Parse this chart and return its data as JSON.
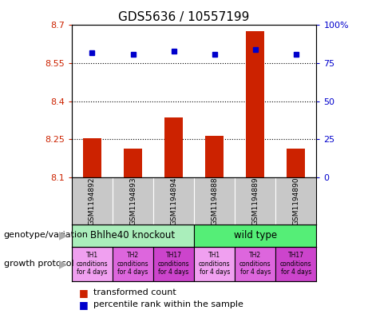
{
  "title": "GDS5636 / 10557199",
  "categories": [
    "GSM1194892",
    "GSM1194893",
    "GSM1194894",
    "GSM1194888",
    "GSM1194889",
    "GSM1194890"
  ],
  "bar_values": [
    8.253,
    8.215,
    8.335,
    8.265,
    8.675,
    8.215
  ],
  "bar_bottom": 8.1,
  "percentile_values": [
    82,
    81,
    83,
    81,
    84,
    81
  ],
  "ylim_left": [
    8.1,
    8.7
  ],
  "ylim_right": [
    0,
    100
  ],
  "yticks_left": [
    8.1,
    8.25,
    8.4,
    8.55,
    8.7
  ],
  "yticks_right": [
    0,
    25,
    50,
    75,
    100
  ],
  "ytick_labels_left": [
    "8.1",
    "8.25",
    "8.4",
    "8.55",
    "8.7"
  ],
  "ytick_labels_right": [
    "0",
    "25",
    "50",
    "75",
    "100%"
  ],
  "hgrid_lines": [
    8.25,
    8.4,
    8.55
  ],
  "bar_color": "#cc2200",
  "dot_color": "#0000cc",
  "genotype_groups": [
    {
      "label": "Bhlhe40 knockout",
      "start": 0,
      "end": 3,
      "color": "#aaeebb"
    },
    {
      "label": "wild type",
      "start": 3,
      "end": 6,
      "color": "#55ee77"
    }
  ],
  "growth_protocols": [
    {
      "label": "TH1\nconditions\nfor 4 days",
      "col": 0,
      "color": "#f0a0f0"
    },
    {
      "label": "TH2\nconditions\nfor 4 days",
      "col": 1,
      "color": "#dd66dd"
    },
    {
      "label": "TH17\nconditions\nfor 4 days",
      "col": 2,
      "color": "#cc44cc"
    },
    {
      "label": "TH1\nconditions\nfor 4 days",
      "col": 3,
      "color": "#f0a0f0"
    },
    {
      "label": "TH2\nconditions\nfor 4 days",
      "col": 4,
      "color": "#dd66dd"
    },
    {
      "label": "TH17\nconditions\nfor 4 days",
      "col": 5,
      "color": "#cc44cc"
    }
  ],
  "legend_red_label": "transformed count",
  "legend_blue_label": "percentile rank within the sample",
  "bg_color": "#c8c8c8",
  "plot_bg": "#ffffff",
  "label_genotype": "genotype/variation",
  "label_growth": "growth protocol",
  "bar_width": 0.45
}
